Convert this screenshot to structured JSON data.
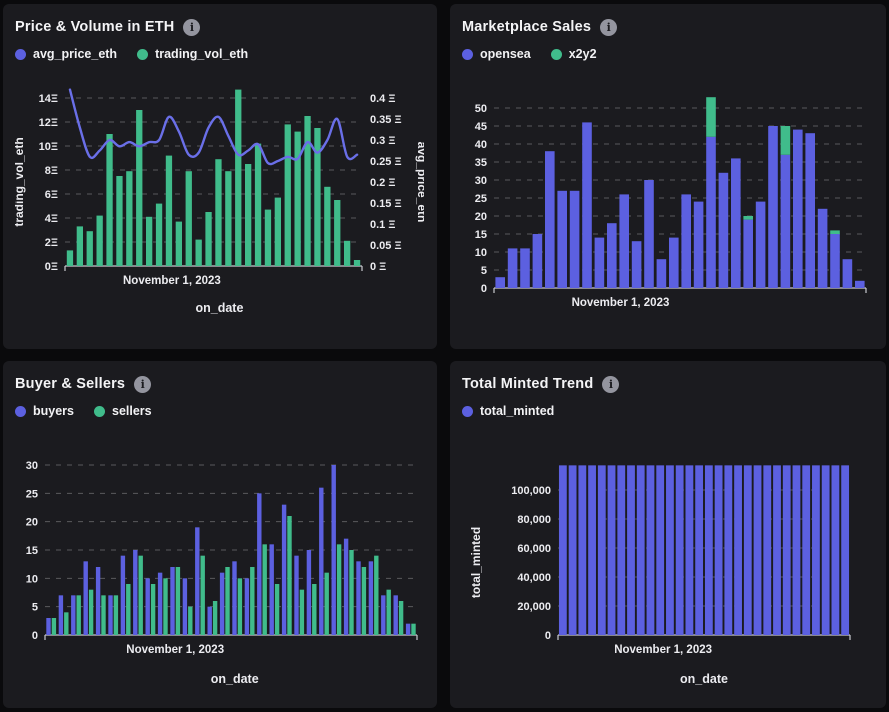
{
  "page": {
    "background": "#0a0a0c",
    "panel_background": "#1b1b1f"
  },
  "colors": {
    "purple": "#5c60e0",
    "green": "#40bc8b",
    "line_purple": "#6a6fe8",
    "text": "#f2f2f4",
    "grid": "rgba(255,255,255,0.28)",
    "axis": "#c9cad0"
  },
  "icons": {
    "info": "i"
  },
  "panels": [
    {
      "title": "Price & Volume in ETH",
      "legend": [
        {
          "label": "avg_price_eth",
          "color": "#5c60e0"
        },
        {
          "label": "trading_vol_eth",
          "color": "#40bc8b"
        }
      ],
      "chart_data": {
        "type": "bar+line",
        "x_tick_label": "November 1, 2023",
        "xlabel": "on_date",
        "left_axis": {
          "label": "trading_vol_eth",
          "min": 0,
          "max": 14,
          "tick_step": 2,
          "ticks": [
            "0Ξ",
            "2Ξ",
            "4Ξ",
            "6Ξ",
            "8Ξ",
            "10Ξ",
            "12Ξ",
            "14Ξ"
          ]
        },
        "right_axis": {
          "label": "avg_price_eth",
          "min": 0,
          "max": 0.4,
          "tick_step": 0.05,
          "ticks": [
            "0 Ξ",
            "0.05 Ξ",
            "0.1 Ξ",
            "0.15 Ξ",
            "0.2 Ξ",
            "0.25 Ξ",
            "0.3 Ξ",
            "0.35 Ξ",
            "0.4 Ξ"
          ]
        },
        "series": [
          {
            "name": "trading_vol_eth",
            "type": "bar",
            "axis": "left",
            "color": "#40bc8b",
            "values": [
              1.3,
              3.3,
              2.9,
              4.2,
              11,
              7.5,
              7.9,
              13,
              4.1,
              5.2,
              9.2,
              3.7,
              7.9,
              2.2,
              4.5,
              8.9,
              7.9,
              14.7,
              8.5,
              10.2,
              4.7,
              5.7,
              11.8,
              11.2,
              12.5,
              11.5,
              6.6,
              5.5,
              2.1,
              0.5
            ]
          },
          {
            "name": "avg_price_eth",
            "type": "line",
            "axis": "right",
            "color": "#6a6fe8",
            "values": [
              0.42,
              0.33,
              0.26,
              0.275,
              0.3,
              0.285,
              0.295,
              0.285,
              0.295,
              0.3,
              0.355,
              0.32,
              0.265,
              0.27,
              0.33,
              0.355,
              0.31,
              0.265,
              0.275,
              0.29,
              0.245,
              0.25,
              0.26,
              0.255,
              0.295,
              0.27,
              0.3,
              0.35,
              0.26,
              0.265
            ]
          }
        ]
      }
    },
    {
      "title": "Marketplace Sales",
      "legend": [
        {
          "label": "opensea",
          "color": "#5c60e0"
        },
        {
          "label": "x2y2",
          "color": "#40bc8b"
        }
      ],
      "chart_data": {
        "type": "stacked-bar",
        "x_tick_label": "November 1, 2023",
        "y_axis": {
          "min": 0,
          "max": 50,
          "tick_step": 5,
          "ticks": [
            "0",
            "5",
            "10",
            "15",
            "20",
            "25",
            "30",
            "35",
            "40",
            "45",
            "50"
          ]
        },
        "series": [
          {
            "name": "opensea",
            "color": "#5c60e0",
            "values": [
              3,
              11,
              11,
              15,
              38,
              27,
              27,
              46,
              14,
              18,
              26,
              13,
              30,
              8,
              14,
              26,
              24,
              42,
              32,
              36,
              19,
              24,
              45,
              37,
              44,
              43,
              22,
              15,
              8,
              2
            ]
          },
          {
            "name": "x2y2",
            "color": "#40bc8b",
            "values": [
              0,
              0,
              0,
              0,
              0,
              0,
              0,
              0,
              0,
              0,
              0,
              0,
              0,
              0,
              0,
              0,
              0,
              11,
              0,
              0,
              1,
              0,
              0,
              8,
              0,
              0,
              0,
              1,
              0,
              0
            ]
          }
        ]
      }
    },
    {
      "title": "Buyer & Sellers",
      "legend": [
        {
          "label": "buyers",
          "color": "#5c60e0"
        },
        {
          "label": "sellers",
          "color": "#40bc8b"
        }
      ],
      "chart_data": {
        "type": "grouped-bar",
        "x_tick_label": "November 1, 2023",
        "xlabel": "on_date",
        "y_axis": {
          "min": 0,
          "max": 30,
          "tick_step": 5,
          "ticks": [
            "0",
            "5",
            "10",
            "15",
            "20",
            "25",
            "30"
          ]
        },
        "series": [
          {
            "name": "buyers",
            "color": "#5c60e0",
            "values": [
              3,
              7,
              7,
              13,
              12,
              7,
              14,
              15,
              10,
              11,
              12,
              10,
              19,
              5,
              11,
              13,
              10,
              25,
              16,
              23,
              14,
              15,
              26,
              30,
              17,
              13,
              13,
              7,
              7,
              2
            ]
          },
          {
            "name": "sellers",
            "color": "#40bc8b",
            "values": [
              3,
              4,
              7,
              8,
              7,
              7,
              9,
              14,
              9,
              10,
              12,
              5,
              14,
              6,
              12,
              10,
              12,
              16,
              9,
              21,
              8,
              9,
              11,
              16,
              15,
              12,
              14,
              8,
              6,
              2
            ]
          }
        ]
      }
    },
    {
      "title": "Total Minted Trend",
      "legend": [
        {
          "label": "total_minted",
          "color": "#5c60e0"
        }
      ],
      "chart_data": {
        "type": "bar",
        "x_tick_label": "November 1, 2023",
        "xlabel": "on_date",
        "y_axis": {
          "label": "total_minted",
          "min": 0,
          "max": 100000,
          "tick_step": 20000,
          "ticks": [
            "0",
            "20,000",
            "40,000",
            "60,000",
            "80,000",
            "100,000"
          ]
        },
        "series": [
          {
            "name": "total_minted",
            "color": "#5c60e0",
            "values": [
              117000,
              117000,
              117000,
              117000,
              117000,
              117000,
              117000,
              117000,
              117000,
              117000,
              117000,
              117000,
              117000,
              117000,
              117000,
              117000,
              117000,
              117000,
              117000,
              117000,
              117000,
              117000,
              117000,
              117000,
              117000,
              117000,
              117000,
              117000,
              117000,
              117000
            ]
          }
        ]
      }
    }
  ]
}
